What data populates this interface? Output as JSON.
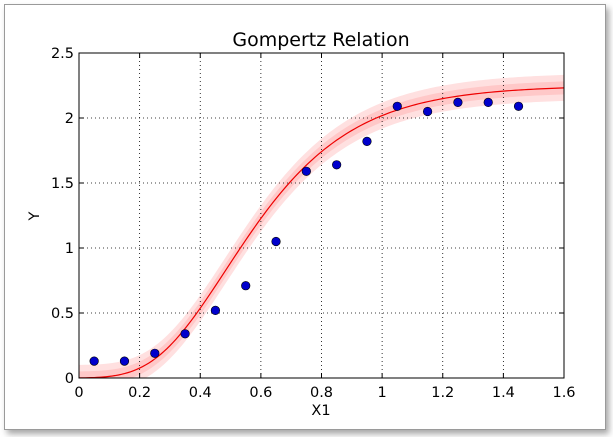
{
  "chart_data": {
    "type": "scatter",
    "title": "Gompertz Relation",
    "xlabel": "X1",
    "ylabel": "Y",
    "xlim": [
      0,
      1.6
    ],
    "ylim": [
      0,
      2.5
    ],
    "grid": true,
    "x_ticks": [
      0,
      0.2,
      0.4,
      0.6,
      0.8,
      1,
      1.2,
      1.4,
      1.6
    ],
    "x_tick_labels": [
      "0",
      "0.2",
      "0.4",
      "0.6",
      "0.8",
      "1",
      "1.2",
      "1.4",
      "1.6"
    ],
    "y_ticks": [
      0,
      0.5,
      1,
      1.5,
      2,
      2.5
    ],
    "y_tick_labels": [
      "0",
      "0.5",
      "1",
      "1.5",
      "2",
      "2.5"
    ],
    "colors": {
      "points": "#0000cc",
      "curve": "#ee0000",
      "band_inner": "#ffc8c8",
      "band_outer": "#ffe0e0"
    },
    "points": {
      "x": [
        0.05,
        0.15,
        0.25,
        0.35,
        0.45,
        0.55,
        0.65,
        0.75,
        0.85,
        0.95,
        1.05,
        1.15,
        1.25,
        1.35,
        1.45
      ],
      "y": [
        0.13,
        0.13,
        0.19,
        0.34,
        0.52,
        0.71,
        1.05,
        1.59,
        1.64,
        1.82,
        2.09,
        2.05,
        2.12,
        2.12,
        2.09
      ]
    },
    "fit": {
      "model": "gompertz",
      "asymptote": 2.25,
      "displacement": 8.0,
      "rate": 4.3,
      "band_inner_halfwidth": 0.05,
      "band_outer_halfwidth": 0.1
    }
  }
}
